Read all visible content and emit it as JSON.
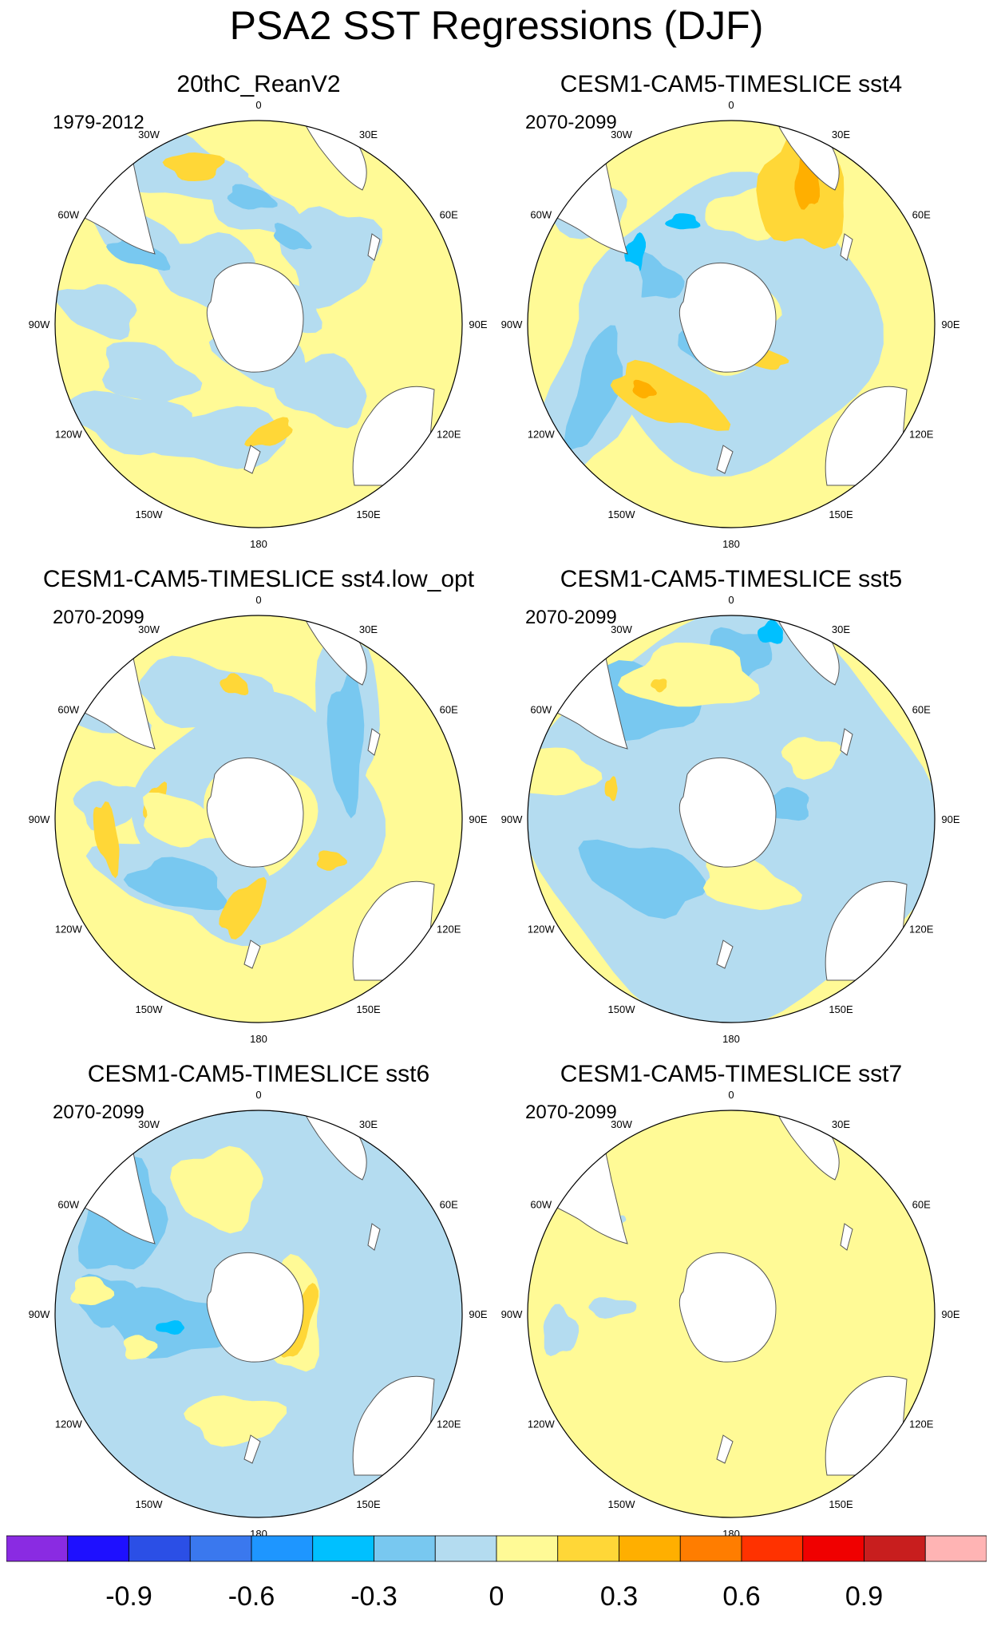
{
  "title": "PSA2 SST Regressions (DJF)",
  "longitude_labels": [
    "0",
    "30E",
    "60E",
    "90E",
    "120E",
    "150E",
    "180",
    "150W",
    "120W",
    "90W",
    "60W",
    "30W"
  ],
  "panels": [
    {
      "title": "20thC_ReanV2",
      "period": "1979-2012",
      "pattern": "reanv2"
    },
    {
      "title": "CESM1-CAM5-TIMESLICE sst4",
      "period": "2070-2099",
      "pattern": "sst4"
    },
    {
      "title": "CESM1-CAM5-TIMESLICE sst4.low_opt",
      "period": "2070-2099",
      "pattern": "sst4low"
    },
    {
      "title": "CESM1-CAM5-TIMESLICE sst5",
      "period": "2070-2099",
      "pattern": "sst5"
    },
    {
      "title": "CESM1-CAM5-TIMESLICE sst6",
      "period": "2070-2099",
      "pattern": "sst6"
    },
    {
      "title": "CESM1-CAM5-TIMESLICE sst7",
      "period": "2070-2099",
      "pattern": "sst7"
    }
  ],
  "colorbar": {
    "colors": [
      "#8a2be2",
      "#1e10ff",
      "#2b4fe6",
      "#3a78ee",
      "#1e96ff",
      "#00c0ff",
      "#78c8f0",
      "#b4dcf0",
      "#fffa96",
      "#ffd737",
      "#ffaf00",
      "#ff7d00",
      "#ff3200",
      "#f00000",
      "#c81e1e",
      "#ffb4b4"
    ],
    "labels": [
      {
        "text": "-0.9",
        "boundary": 2
      },
      {
        "text": "-0.6",
        "boundary": 4
      },
      {
        "text": "-0.3",
        "boundary": 6
      },
      {
        "text": "0",
        "boundary": 8
      },
      {
        "text": "0.3",
        "boundary": 10
      },
      {
        "text": "0.6",
        "boundary": 12
      },
      {
        "text": "0.9",
        "boundary": 14
      }
    ]
  },
  "colors": {
    "land": "#ffffff",
    "ocean_neutral": "#fffa96",
    "coast": "#555555"
  }
}
